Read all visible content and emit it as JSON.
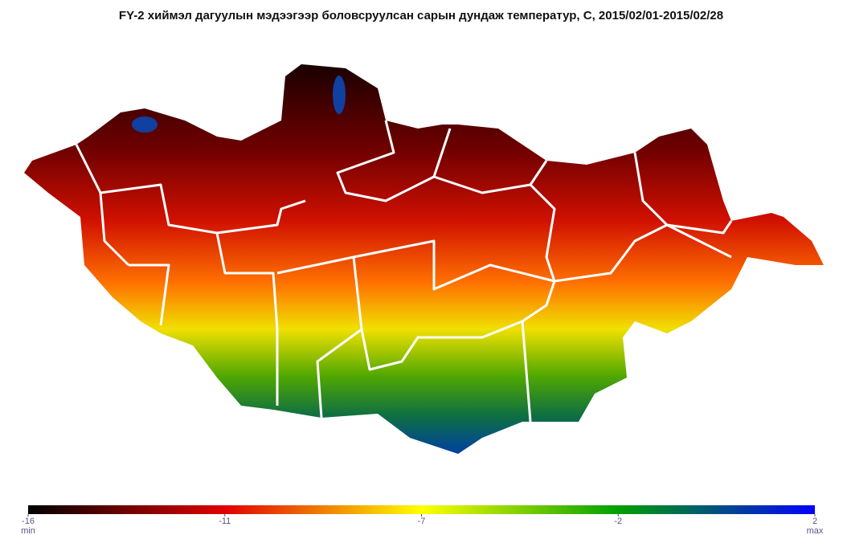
{
  "title": "FY-2 хиймэл дагуулын мэдээгээр боловсруулсан сарын дундаж температур, C, 2015/02/01-2015/02/28",
  "colorbar": {
    "ticks": [
      -16,
      -11,
      -7,
      -2,
      2
    ],
    "colors": [
      "#000000",
      "#e00000",
      "#ffff00",
      "#00a000",
      "#0000ff"
    ],
    "min_label": "min",
    "max_label": "max"
  }
}
